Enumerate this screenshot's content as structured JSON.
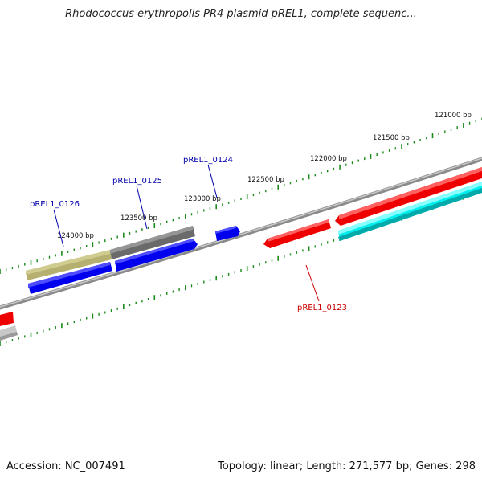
{
  "title": "Rhodococcus erythropolis PR4 plasmid pREL1, complete sequenc...",
  "footer": {
    "accession": "Accession: NC_007491",
    "summary": "Topology: linear; Length: 271,577 bp; Genes: 298"
  },
  "colors": {
    "tick": "#1a8a1a",
    "backbone": "#8a8a8a",
    "label_blue": "#0000aa",
    "label_red": "#cc0000",
    "gene_red": "#ee0000",
    "gene_blue": "#0000ee",
    "gene_cyan": "#00eeee",
    "gene_olive": "#b5b070",
    "gene_darkgray": "#6a6a6a",
    "gene_lightgray": "#c8c8c8"
  },
  "scale_labels": [
    {
      "text": "121000 bp",
      "bp": 121000
    },
    {
      "text": "121500 bp",
      "bp": 121500
    },
    {
      "text": "122000 bp",
      "bp": 122000
    },
    {
      "text": "122500 bp",
      "bp": 122500
    },
    {
      "text": "123000 bp",
      "bp": 123000
    },
    {
      "text": "123500 bp",
      "bp": 123500
    },
    {
      "text": "124000 bp",
      "bp": 124000
    }
  ],
  "genes": [
    {
      "label": "pREL1_0123",
      "color_key": "label_red"
    },
    {
      "label": "pREL1_0124",
      "color_key": "label_blue"
    },
    {
      "label": "pREL1_0125",
      "color_key": "label_blue"
    },
    {
      "label": "pREL1_0126",
      "color_key": "label_blue"
    }
  ]
}
